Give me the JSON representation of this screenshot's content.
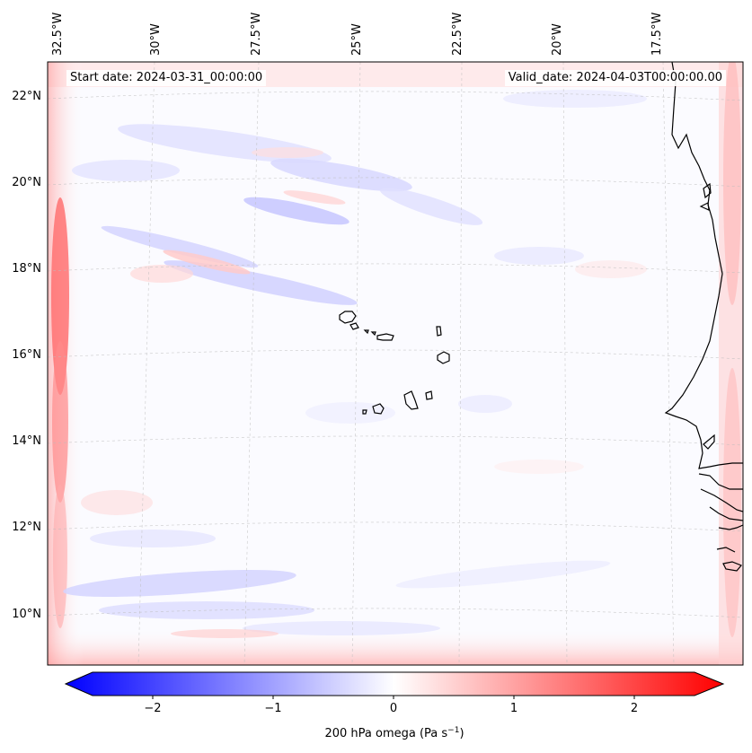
{
  "map": {
    "start_label": "Start date: 2024-03-31_00:00:00",
    "valid_label": "Valid_date: 2024-04-03T00:00:00.00",
    "lon_labels": [
      "32.5°W",
      "30°W",
      "27.5°W",
      "25°W",
      "22.5°W",
      "20°W",
      "17.5°W"
    ],
    "lat_labels": [
      "22°N",
      "20°N",
      "18°N",
      "16°N",
      "14°N",
      "12°N",
      "10°N"
    ],
    "field": "200 hPa omega",
    "colorbar": {
      "ticks": [
        "−2",
        "−1",
        "0",
        "1",
        "2"
      ],
      "tick_values": [
        -2,
        -1,
        0,
        1,
        2
      ],
      "range": [
        -2.5,
        2.5
      ],
      "label_prefix": "200 hPa omega (Pa s",
      "label_exp": "−1",
      "label_suffix": ")",
      "cmap": "bwr",
      "low_color": "#0000ff",
      "mid_color": "#ffffff",
      "high_color": "#ff0000"
    }
  }
}
